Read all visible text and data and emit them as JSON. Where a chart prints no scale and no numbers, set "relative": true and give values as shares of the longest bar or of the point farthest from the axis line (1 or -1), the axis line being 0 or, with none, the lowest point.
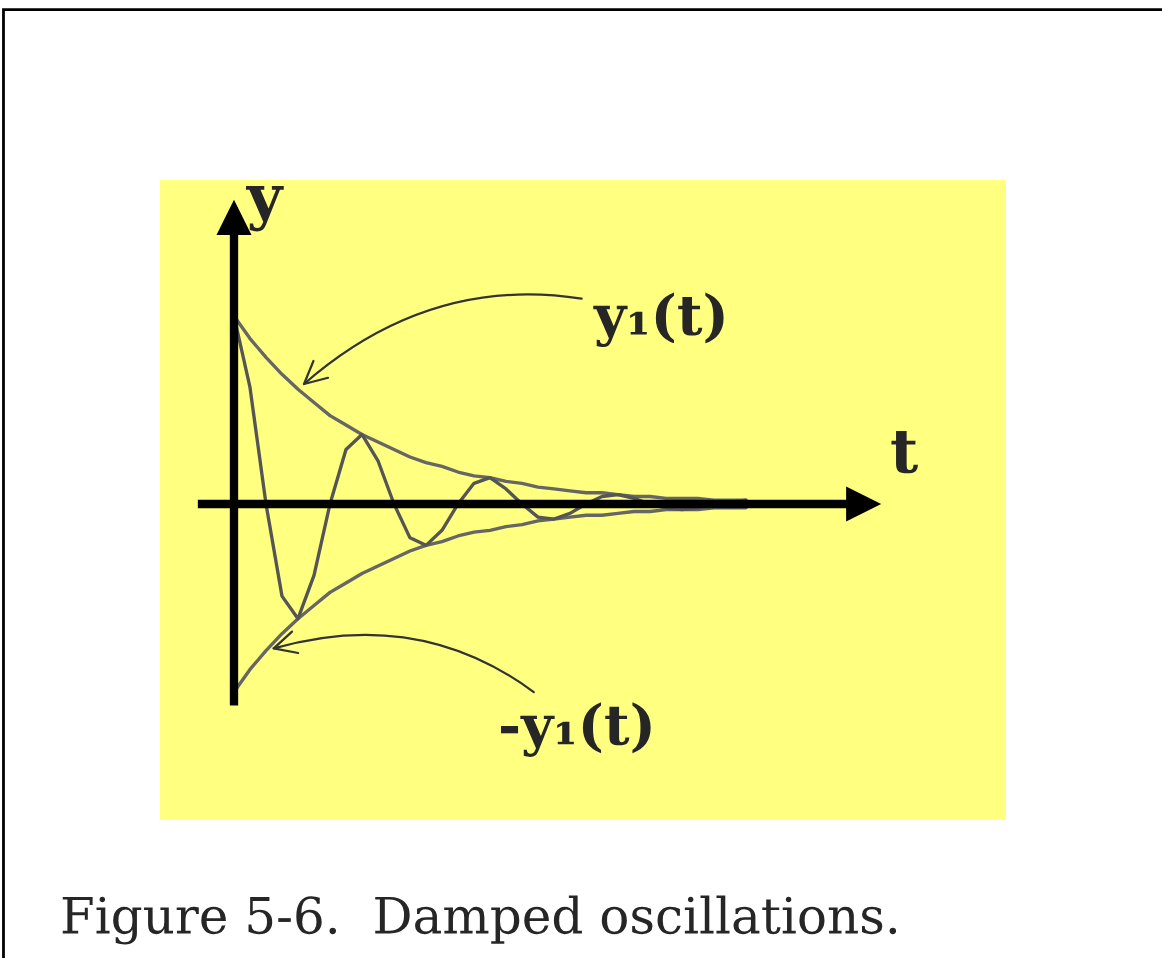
{
  "chart_data": {
    "type": "line",
    "relative": true,
    "xlabel": "t",
    "ylabel": "y",
    "categories": [
      null,
      null,
      null,
      null,
      null,
      null,
      null,
      null,
      null,
      null,
      null,
      null,
      null,
      null,
      null,
      null,
      null,
      null,
      null,
      null,
      null,
      null,
      null,
      null,
      null,
      null,
      null,
      null,
      null,
      null,
      null,
      null,
      null
    ],
    "series": [
      {
        "name": "y₁(t)",
        "color": "#666666",
        "values": [
          1,
          0.88,
          0.78,
          0.69,
          0.61,
          0.54,
          0.47,
          0.42,
          0.37,
          0.33,
          0.29,
          0.25,
          0.22,
          0.2,
          0.17,
          0.15,
          0.14,
          0.12,
          0.11,
          0.09,
          0.08,
          0.07,
          0.06,
          0.06,
          0.05,
          0.04,
          0.04,
          0.03,
          0.03,
          0.03,
          0.02,
          0.02,
          0.02
        ]
      },
      {
        "name": "-y₁(t)",
        "color": "#666666",
        "values": [
          -1,
          -0.88,
          -0.78,
          -0.69,
          -0.61,
          -0.54,
          -0.47,
          -0.42,
          -0.37,
          -0.33,
          -0.29,
          -0.25,
          -0.22,
          -0.2,
          -0.17,
          -0.15,
          -0.14,
          -0.12,
          -0.11,
          -0.09,
          -0.08,
          -0.07,
          -0.06,
          -0.06,
          -0.05,
          -0.04,
          -0.04,
          -0.03,
          -0.03,
          -0.03,
          -0.02,
          -0.02,
          -0.02
        ]
      },
      {
        "color": "#555555",
        "values": [
          1,
          0.62,
          0,
          -0.49,
          -0.61,
          -0.38,
          0,
          0.29,
          0.37,
          0.23,
          0,
          -0.18,
          -0.22,
          -0.14,
          0,
          0.11,
          0.14,
          0.08,
          0,
          -0.07,
          -0.08,
          -0.05,
          0,
          0.04,
          0.05,
          0.03,
          0,
          -0.02,
          -0.03,
          -0.02,
          0,
          0.01,
          0.02
        ]
      }
    ],
    "annotations": [
      "Figure 5-6.  Damped oscillations."
    ]
  }
}
